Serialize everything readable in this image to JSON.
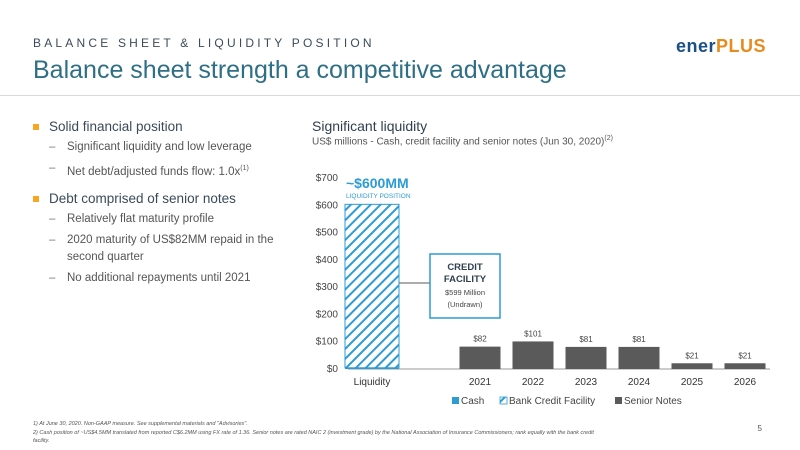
{
  "header": {
    "eyebrow": "BALANCE SHEET & LIQUIDITY POSITION",
    "title": "Balance sheet strength a competitive advantage",
    "logo_part1": "ener",
    "logo_part2": "PLUS"
  },
  "bullets": [
    {
      "text": "Solid financial position",
      "subs": [
        "Significant liquidity and low leverage",
        "Net debt/adjusted funds flow: 1.0x"
      ]
    },
    {
      "text": "Debt comprised of senior notes",
      "subs": [
        "Relatively flat maturity profile",
        "2020 maturity of US$82MM repaid in the second quarter",
        "No additional repayments until 2021"
      ]
    }
  ],
  "footnote_ref_1": "(1)",
  "chart": {
    "title": "Significant liquidity",
    "subtitle": "US$ millions - Cash, credit facility and senior notes (Jun 30, 2020)",
    "subtitle_ref": "(2)"
  },
  "chart_data": {
    "type": "bar",
    "categories": [
      "Liquidity",
      "2021",
      "2022",
      "2023",
      "2024",
      "2025",
      "2026"
    ],
    "series": [
      {
        "name": "Cash",
        "values": [
          4.5,
          0,
          0,
          0,
          0,
          0,
          0
        ],
        "color": "#2d9bd4"
      },
      {
        "name": "Bank Credit Facility",
        "values": [
          599,
          0,
          0,
          0,
          0,
          0,
          0
        ],
        "color": "#2d9bd4"
      },
      {
        "name": "Senior Notes",
        "values": [
          0,
          82,
          101,
          81,
          81,
          21,
          21
        ],
        "color": "#5a5a5a"
      }
    ],
    "data_labels": [
      "",
      "$82",
      "$101",
      "$81",
      "$81",
      "$21",
      "$21"
    ],
    "yticks": [
      "$0",
      "$100",
      "$200",
      "$300",
      "$400",
      "$500",
      "$600",
      "$700"
    ],
    "ylim": [
      0,
      700
    ],
    "grid": false,
    "legend_position": "bottom",
    "annotation_main": "~$600MM",
    "annotation_sub": "LIQUIDITY POSITION",
    "callout_title1": "CREDIT",
    "callout_title2": "FACILITY",
    "callout_line1": "$599 Million",
    "callout_line2": "(Undrawn)"
  },
  "footnotes": [
    "1)   At June 30,  2020.  Non-GAAP measure.  See supplemental materials  and \"Advisories\".",
    "2)   Cash position of ~US$4.5MM translated from reported C$6.2MM using FX rate of 1.36.  Senior notes are rated NAIC 2 (investment grade) by the National Association of Insurance Commissioners; rank equally with the bank credit",
    "      facility."
  ],
  "page_number": "5"
}
